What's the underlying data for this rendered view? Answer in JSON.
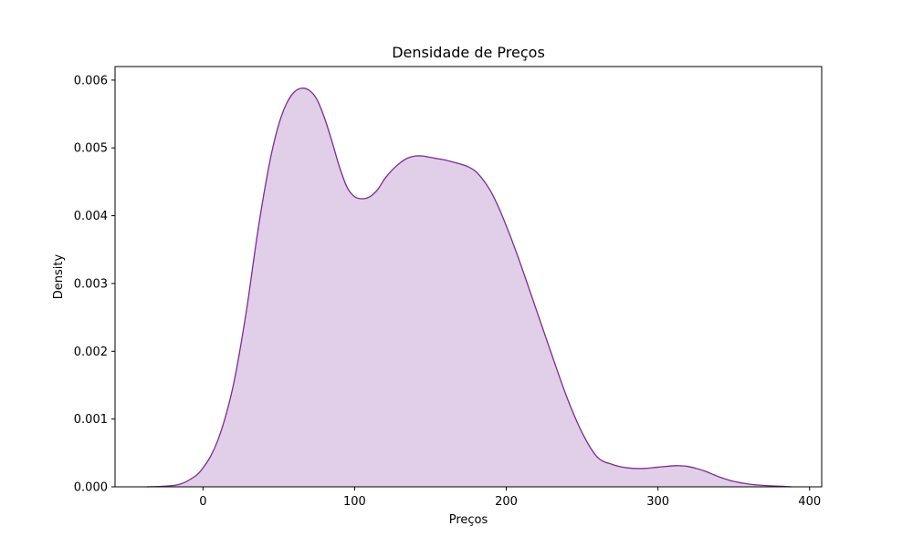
{
  "chart_data": {
    "type": "area",
    "title": "Densidade de Preços",
    "xlabel": "Preços",
    "ylabel": "Density",
    "xlim": [
      -58,
      408
    ],
    "ylim": [
      0,
      0.0062
    ],
    "grid": false,
    "xticks": [
      0,
      100,
      200,
      300,
      400
    ],
    "xtick_labels": [
      "0",
      "100",
      "200",
      "300",
      "400"
    ],
    "yticks": [
      0,
      0.001,
      0.002,
      0.003,
      0.004,
      0.005,
      0.006
    ],
    "ytick_labels": [
      "0.000",
      "0.001",
      "0.002",
      "0.003",
      "0.004",
      "0.005",
      "0.006"
    ],
    "colors": {
      "line": "#7b2d8e",
      "fill": "#e1cee8"
    },
    "series": [
      {
        "x": [
          -37,
          -25,
          -15,
          -5,
          0,
          5,
          10,
          15,
          20,
          25,
          30,
          35,
          40,
          45,
          50,
          55,
          60,
          65,
          70,
          75,
          80,
          85,
          90,
          95,
          100,
          105,
          110,
          115,
          120,
          125,
          130,
          135,
          140,
          145,
          150,
          155,
          160,
          165,
          170,
          175,
          180,
          185,
          190,
          195,
          200,
          205,
          210,
          220,
          230,
          240,
          250,
          260,
          270,
          280,
          290,
          300,
          310,
          315,
          320,
          330,
          340,
          350,
          360,
          370,
          380,
          388
        ],
        "y": [
          0.0,
          1e-05,
          4e-05,
          0.00016,
          0.00028,
          0.00045,
          0.0007,
          0.00105,
          0.0015,
          0.0021,
          0.0028,
          0.0036,
          0.0043,
          0.0049,
          0.00535,
          0.00565,
          0.00582,
          0.00588,
          0.00585,
          0.00572,
          0.00545,
          0.0051,
          0.00472,
          0.00442,
          0.00428,
          0.00425,
          0.00428,
          0.00438,
          0.00455,
          0.00468,
          0.00478,
          0.00485,
          0.00488,
          0.00488,
          0.00486,
          0.00484,
          0.00482,
          0.00479,
          0.00476,
          0.00472,
          0.00465,
          0.00452,
          0.00435,
          0.00412,
          0.00385,
          0.00356,
          0.00325,
          0.0026,
          0.00195,
          0.00132,
          0.0008,
          0.00044,
          0.00033,
          0.00028,
          0.00027,
          0.00029,
          0.00031,
          0.00031,
          0.0003,
          0.00024,
          0.00015,
          8e-05,
          4e-05,
          2e-05,
          1e-05,
          0.0
        ]
      }
    ]
  }
}
